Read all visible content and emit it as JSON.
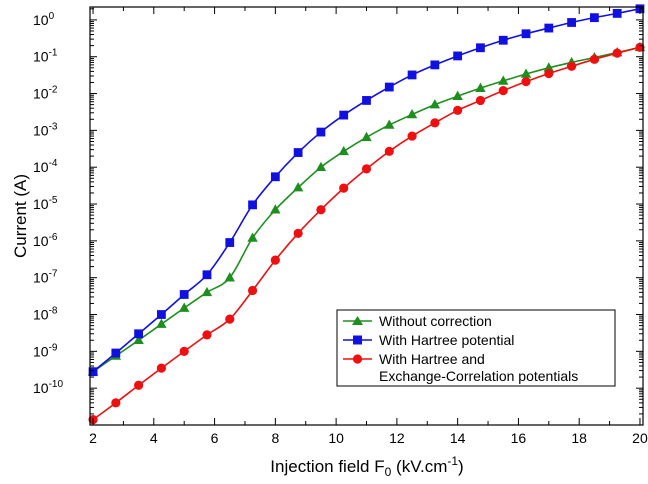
{
  "chart_data": {
    "type": "line",
    "xlabel": "Injection field F",
    "xlabel_sub": "0",
    "xlabel_unit_open": " (kV.cm",
    "xlabel_sup": "-1",
    "xlabel_unit_close": ")",
    "ylabel": "Current (A)",
    "xlim": [
      1.9,
      20.1
    ],
    "ylim_log10": [
      -11,
      0.35
    ],
    "y_scale": "log",
    "grid": false,
    "legend_position": "bottom-right",
    "x_ticks": [
      {
        "value": 2,
        "label": "2"
      },
      {
        "value": 4,
        "label": "4"
      },
      {
        "value": 6,
        "label": "6"
      },
      {
        "value": 8,
        "label": "8"
      },
      {
        "value": 10,
        "label": "10"
      },
      {
        "value": 12,
        "label": "12"
      },
      {
        "value": 14,
        "label": "14"
      },
      {
        "value": 16,
        "label": "16"
      },
      {
        "value": 18,
        "label": "18"
      },
      {
        "value": 20,
        "label": "20"
      }
    ],
    "y_ticks": [
      {
        "exp": 0,
        "base": "10",
        "sup": "0"
      },
      {
        "exp": -1,
        "base": "10",
        "sup": "-1"
      },
      {
        "exp": -2,
        "base": "10",
        "sup": "-2"
      },
      {
        "exp": -3,
        "base": "10",
        "sup": "-3"
      },
      {
        "exp": -4,
        "base": "10",
        "sup": "-4"
      },
      {
        "exp": -5,
        "base": "10",
        "sup": "-5"
      },
      {
        "exp": -6,
        "base": "10",
        "sup": "-6"
      },
      {
        "exp": -7,
        "base": "10",
        "sup": "-7"
      },
      {
        "exp": -8,
        "base": "10",
        "sup": "-8"
      },
      {
        "exp": -9,
        "base": "10",
        "sup": "-9"
      },
      {
        "exp": -10,
        "base": "10",
        "sup": "-10"
      }
    ],
    "series": [
      {
        "name": "Without correction",
        "color": "#1e8f1e",
        "marker": "triangle",
        "points": [
          [
            2.0,
            2.8e-10
          ],
          [
            2.75,
            7.5e-10
          ],
          [
            3.5,
            2e-09
          ],
          [
            4.25,
            5.5e-09
          ],
          [
            5.0,
            1.5e-08
          ],
          [
            5.75,
            4e-08
          ],
          [
            6.5,
            1e-07
          ],
          [
            7.25,
            1.2e-06
          ],
          [
            8.0,
            7e-06
          ],
          [
            8.75,
            2.8e-05
          ],
          [
            9.5,
            0.0001
          ],
          [
            10.25,
            0.00027
          ],
          [
            11.0,
            0.00065
          ],
          [
            11.75,
            0.0014
          ],
          [
            12.5,
            0.0027
          ],
          [
            13.25,
            0.005
          ],
          [
            14.0,
            0.0085
          ],
          [
            14.75,
            0.014
          ],
          [
            15.5,
            0.022
          ],
          [
            16.25,
            0.034
          ],
          [
            17.0,
            0.05
          ],
          [
            17.75,
            0.07
          ],
          [
            18.5,
            0.095
          ],
          [
            19.25,
            0.13
          ],
          [
            20.0,
            0.18
          ]
        ]
      },
      {
        "name": "With Hartree potential",
        "color": "#1010e0",
        "marker": "square",
        "points": [
          [
            2.0,
            2.8e-10
          ],
          [
            2.75,
            9e-10
          ],
          [
            3.5,
            3e-09
          ],
          [
            4.25,
            1e-08
          ],
          [
            5.0,
            3.5e-08
          ],
          [
            5.75,
            1.2e-07
          ],
          [
            6.5,
            9e-07
          ],
          [
            7.25,
            9.5e-06
          ],
          [
            8.0,
            5.5e-05
          ],
          [
            8.75,
            0.00025
          ],
          [
            9.5,
            0.0009
          ],
          [
            10.25,
            0.0026
          ],
          [
            11.0,
            0.0065
          ],
          [
            11.75,
            0.015
          ],
          [
            12.5,
            0.032
          ],
          [
            13.25,
            0.06
          ],
          [
            14.0,
            0.105
          ],
          [
            14.75,
            0.175
          ],
          [
            15.5,
            0.28
          ],
          [
            16.25,
            0.42
          ],
          [
            17.0,
            0.6
          ],
          [
            17.75,
            0.85
          ],
          [
            18.5,
            1.15
          ],
          [
            19.25,
            1.5
          ],
          [
            20.0,
            2.0
          ]
        ]
      },
      {
        "name": "With Hartree and",
        "name_line2": "Exchange-Correlation potentials",
        "color": "#ee1010",
        "marker": "circle",
        "points": [
          [
            2.0,
            1.4e-11
          ],
          [
            2.75,
            4e-11
          ],
          [
            3.5,
            1.2e-10
          ],
          [
            4.25,
            3.5e-10
          ],
          [
            5.0,
            1e-09
          ],
          [
            5.75,
            2.8e-09
          ],
          [
            6.5,
            7.5e-09
          ],
          [
            7.25,
            4.5e-08
          ],
          [
            8.0,
            3e-07
          ],
          [
            8.75,
            1.6e-06
          ],
          [
            9.5,
            7e-06
          ],
          [
            10.25,
            2.7e-05
          ],
          [
            11.0,
            9e-05
          ],
          [
            11.75,
            0.00027
          ],
          [
            12.5,
            0.0007
          ],
          [
            13.25,
            0.0016
          ],
          [
            14.0,
            0.0035
          ],
          [
            14.75,
            0.0065
          ],
          [
            15.5,
            0.012
          ],
          [
            16.25,
            0.021
          ],
          [
            17.0,
            0.035
          ],
          [
            17.75,
            0.055
          ],
          [
            18.5,
            0.085
          ],
          [
            19.25,
            0.125
          ],
          [
            20.0,
            0.18
          ]
        ]
      }
    ]
  }
}
